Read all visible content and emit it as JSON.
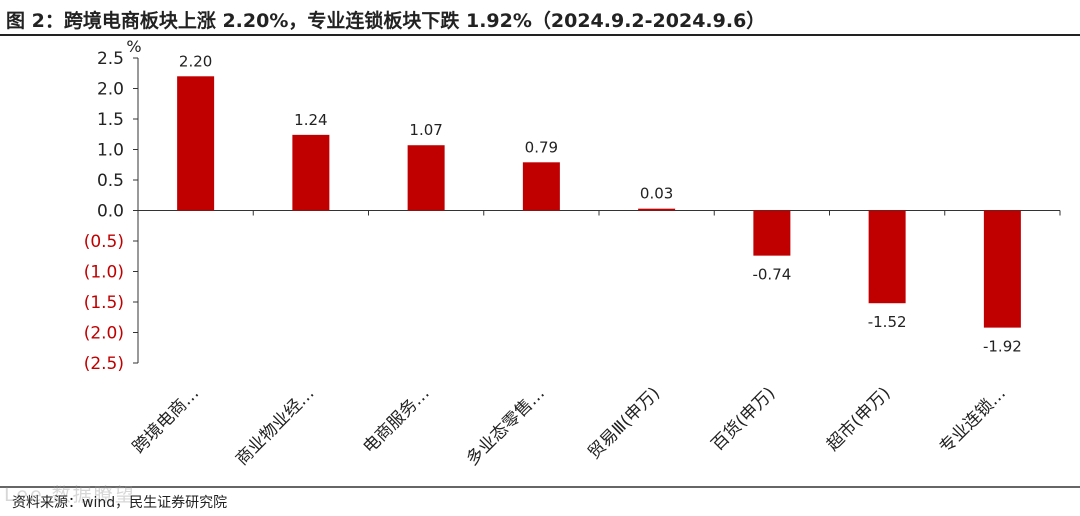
{
  "title": "图 2：跨境电商板块上涨 2.20%，专业连锁板块下跌 1.92%（2024.9.2-2024.9.6）",
  "source": "资料来源：wind，民生证券研究院",
  "watermark": "Lee 数据瞭望",
  "colors": {
    "bar": "#c00000",
    "negative_tick": "#c00000",
    "axis": "#333333"
  },
  "chart_data": {
    "type": "bar",
    "unit_label": "%",
    "categories": [
      "跨境电商…",
      "商业物业经…",
      "电商服务…",
      "多业态零售…",
      "贸易Ⅲ(申万)",
      "百货(申万)",
      "超市(申万)",
      "专业连锁…"
    ],
    "values": [
      2.2,
      1.24,
      1.07,
      0.79,
      0.03,
      -0.74,
      -1.52,
      -1.92
    ],
    "data_labels": [
      "2.20",
      "1.24",
      "1.07",
      "0.79",
      "0.03",
      "-0.74",
      "-1.52",
      "-1.92"
    ],
    "ylim": [
      -2.5,
      2.5
    ],
    "yticks": [
      2.5,
      2.0,
      1.5,
      1.0,
      0.5,
      0.0,
      -0.5,
      -1.0,
      -1.5,
      -2.0,
      -2.5
    ],
    "ytick_labels": [
      "2.5",
      "2.0",
      "1.5",
      "1.0",
      "0.5",
      "0.0",
      "(0.5)",
      "(1.0)",
      "(1.5)",
      "(2.0)",
      "(2.5)"
    ],
    "grid": false,
    "legend": "none"
  }
}
